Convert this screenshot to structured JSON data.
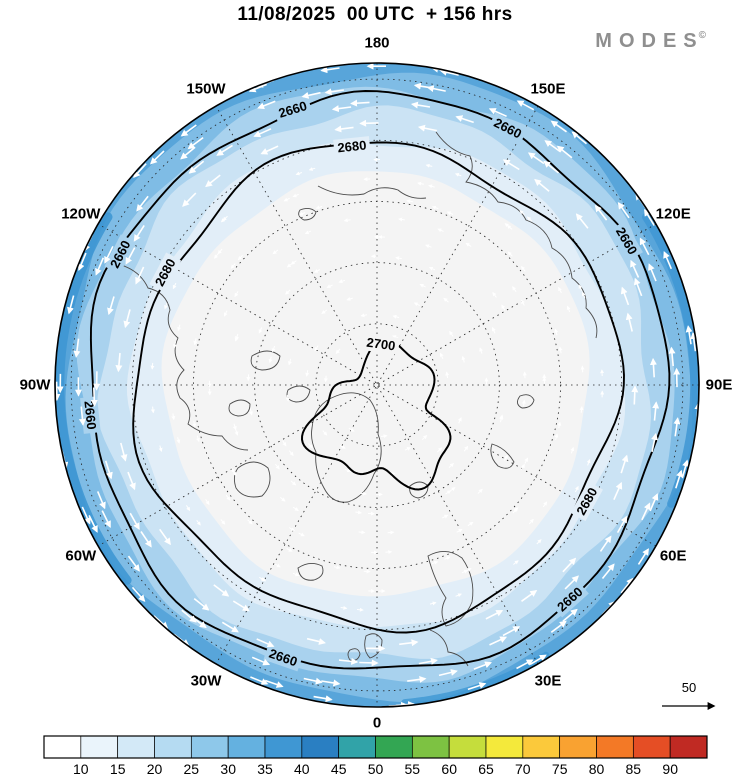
{
  "title": "11/08/2025  00 UTC  + 156 hrs",
  "logo": {
    "text": "MODES",
    "mark": "©"
  },
  "map": {
    "longitude_labels": [
      {
        "label": "180",
        "angle": 0
      },
      {
        "label": "150E",
        "angle": 30
      },
      {
        "label": "120E",
        "angle": 60
      },
      {
        "label": "90E",
        "angle": 90
      },
      {
        "label": "60E",
        "angle": 120
      },
      {
        "label": "30E",
        "angle": 150
      },
      {
        "label": "0",
        "angle": 180
      },
      {
        "label": "30W",
        "angle": 210
      },
      {
        "label": "60W",
        "angle": 240
      },
      {
        "label": "90W",
        "angle": 270
      },
      {
        "label": "120W",
        "angle": 300
      },
      {
        "label": "150W",
        "angle": 330
      }
    ],
    "contours": [
      {
        "level": "2660"
      },
      {
        "level": "2680"
      },
      {
        "level": "2700"
      }
    ],
    "bands": {
      "outer_fractions": [
        0.66,
        0.76,
        0.85,
        0.92,
        0.97
      ],
      "colors": [
        "#f4f4f4",
        "#e2eef8",
        "#cbe3f4",
        "#a9d2ee",
        "#7fbce5",
        "#58a5da"
      ],
      "rim_patch_color": "#3f97d3"
    },
    "graticule": {
      "circle_fractions": [
        0.19,
        0.38,
        0.57,
        0.76,
        0.95
      ]
    }
  },
  "reference_arrow": {
    "label": "50"
  },
  "colorbar": {
    "tick_labels": [
      "10",
      "15",
      "20",
      "25",
      "30",
      "35",
      "40",
      "45",
      "50",
      "55",
      "60",
      "65",
      "70",
      "75",
      "80",
      "85",
      "90"
    ],
    "cell_colors": [
      "#ffffff",
      "#eaf4fb",
      "#d3e9f7",
      "#b5dbf2",
      "#8ec8ea",
      "#64b1e0",
      "#3f97d3",
      "#2a7fc2",
      "#31a3a8",
      "#33a653",
      "#7dc242",
      "#c5dd3c",
      "#f4e93b",
      "#fbc93b",
      "#f9a231",
      "#f37926",
      "#e54e25",
      "#c02a23"
    ]
  },
  "chart_data": {
    "type": "heatmap",
    "projection": "north_polar_stereographic",
    "title": "11/08/2025 00 UTC + 156 hrs",
    "branding": "MODES",
    "shaded_field": {
      "legend_ticks": [
        10,
        15,
        20,
        25,
        30,
        35,
        40,
        45,
        50,
        55,
        60,
        65,
        70,
        75,
        80,
        85,
        90
      ],
      "legend_colors": [
        "#ffffff",
        "#eaf4fb",
        "#d3e9f7",
        "#b5dbf2",
        "#8ec8ea",
        "#64b1e0",
        "#3f97d3",
        "#2a7fc2",
        "#31a3a8",
        "#33a653",
        "#7dc242",
        "#c5dd3c",
        "#f4e93b",
        "#fbc93b",
        "#f9a231",
        "#f37926",
        "#e54e25",
        "#c02a23"
      ],
      "observed_range_on_map": [
        0,
        40
      ],
      "pattern": "values below 10 over the polar interior, increasing outward in roughly concentric rings to 30-40 at the outer rim"
    },
    "contour_field": {
      "labeled_levels": [
        2660,
        2680,
        2700
      ],
      "pattern": "near-concentric contours increasing toward the pole; closed 2700 contour loop near the pole"
    },
    "vectors": {
      "style": "white wind arrows, counterclockwise circumpolar flow, strongest in the outer annulus",
      "reference_value": 50
    },
    "longitude_labels": [
      "180",
      "150E",
      "120E",
      "90E",
      "60E",
      "30E",
      "0",
      "30W",
      "60W",
      "90W",
      "120W",
      "150W"
    ],
    "grid": "dashed latitude circles and dashed meridians every 30 degrees"
  }
}
